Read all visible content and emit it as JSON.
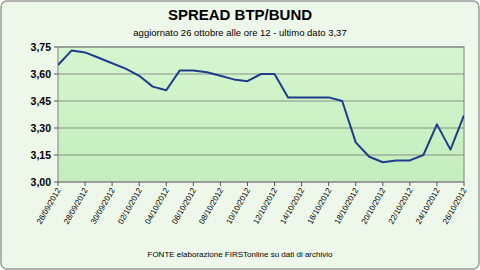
{
  "chart_data": {
    "type": "line",
    "title": "SPREAD BTP/BUND",
    "subtitle": "aggiornato 26 ottobre alle ore 12 - ultimo dato 3,37",
    "annotations": [
      "FONTE elaborazione FIRSTonline su dati di archivio"
    ],
    "categories": [
      "26/09/2012",
      null,
      "28/09/2012",
      null,
      "30/09/2012",
      null,
      "02/10/2012",
      null,
      "04/10/2012",
      null,
      "06/10/2012",
      null,
      "08/10/2012",
      null,
      "10/10/2012",
      null,
      "12/10/2012",
      null,
      "14/10/2012",
      null,
      "16/10/2012",
      null,
      "18/10/2012",
      null,
      "20/10/2012",
      null,
      "22/10/2012",
      null,
      "24/10/2012",
      null,
      "26/10/2012"
    ],
    "values": [
      3.65,
      3.73,
      3.72,
      3.69,
      3.66,
      3.63,
      3.59,
      3.53,
      3.51,
      3.62,
      3.62,
      3.61,
      3.59,
      3.57,
      3.56,
      3.6,
      3.6,
      3.47,
      3.47,
      3.47,
      3.47,
      3.45,
      3.22,
      3.14,
      3.11,
      3.12,
      3.12,
      3.15,
      3.32,
      3.18,
      3.37
    ],
    "color": "#1f3d8c",
    "ylim": [
      3.0,
      3.75
    ],
    "yticks": [
      {
        "value": 3.0,
        "label": "3,00"
      },
      {
        "value": 3.15,
        "label": "3,15"
      },
      {
        "value": 3.3,
        "label": "3,30"
      },
      {
        "value": 3.45,
        "label": "3,45"
      },
      {
        "value": 3.6,
        "label": "3,60"
      },
      {
        "value": 3.75,
        "label": "3,75"
      }
    ],
    "grid": true
  }
}
